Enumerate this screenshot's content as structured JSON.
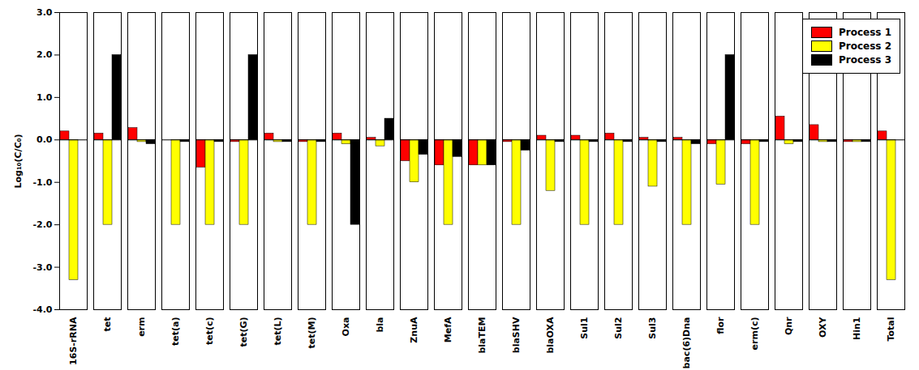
{
  "chart_data": {
    "type": "bar",
    "categories": [
      "16S-rRNA",
      "tet",
      "erm",
      "tet(a)",
      "tet(c)",
      "tet(G)",
      "tet(L)",
      "tet(M)",
      "Oxa",
      "bla",
      "ZnuA",
      "MefA",
      "blaTEM",
      "blaSHV",
      "blaOXA",
      "Sul1",
      "Sul2",
      "Sul3",
      "bac(6)Dna",
      "flor",
      "erm(c)",
      "Qnr",
      "OXY",
      "Hin1",
      "Total"
    ],
    "series": [
      {
        "name": "Process 1",
        "color": "#ff0000",
        "values": [
          0.2,
          0.15,
          0.28,
          0.0,
          -0.65,
          -0.05,
          0.15,
          -0.05,
          0.15,
          0.05,
          -0.5,
          -0.6,
          -0.6,
          -0.05,
          0.1,
          0.1,
          0.15,
          0.05,
          0.05,
          -0.1,
          -0.1,
          0.55,
          0.35,
          -0.05,
          0.2
        ]
      },
      {
        "name": "Process 2",
        "color": "#ffff00",
        "values": [
          -3.3,
          -2.0,
          -0.05,
          -2.0,
          -2.0,
          -2.0,
          -0.05,
          -2.0,
          -0.1,
          -0.15,
          -1.0,
          -2.0,
          -0.6,
          -2.0,
          -1.2,
          -2.0,
          -2.0,
          -1.1,
          -2.0,
          -1.05,
          -2.0,
          -0.1,
          -0.05,
          -0.05,
          -3.3
        ]
      },
      {
        "name": "Process 3",
        "color": "#000000",
        "values": [
          0.0,
          2.0,
          -0.1,
          -0.05,
          -0.05,
          2.0,
          -0.05,
          -0.05,
          -2.0,
          0.5,
          -0.35,
          -0.4,
          -0.6,
          -0.25,
          -0.05,
          -0.05,
          -0.05,
          -0.05,
          -0.1,
          2.0,
          -0.05,
          -0.05,
          -0.05,
          -0.05,
          0.0
        ]
      }
    ],
    "ylabel": "Log₁₀(C/C₀)",
    "ylim": [
      -4.0,
      3.0
    ],
    "yticks": [
      {
        "value": -4.0,
        "label": "-4.0"
      },
      {
        "value": -3.0,
        "label": "-3.0"
      },
      {
        "value": -2.0,
        "label": "-2.0"
      },
      {
        "value": -1.0,
        "label": "-1.0"
      },
      {
        "value": 0.0,
        "label": "0.0"
      },
      {
        "value": 1.0,
        "label": "1.0"
      },
      {
        "value": 2.0,
        "label": "2.0"
      },
      {
        "value": 3.0,
        "label": "3.0"
      }
    ],
    "grid": false,
    "legend": "upper right"
  }
}
